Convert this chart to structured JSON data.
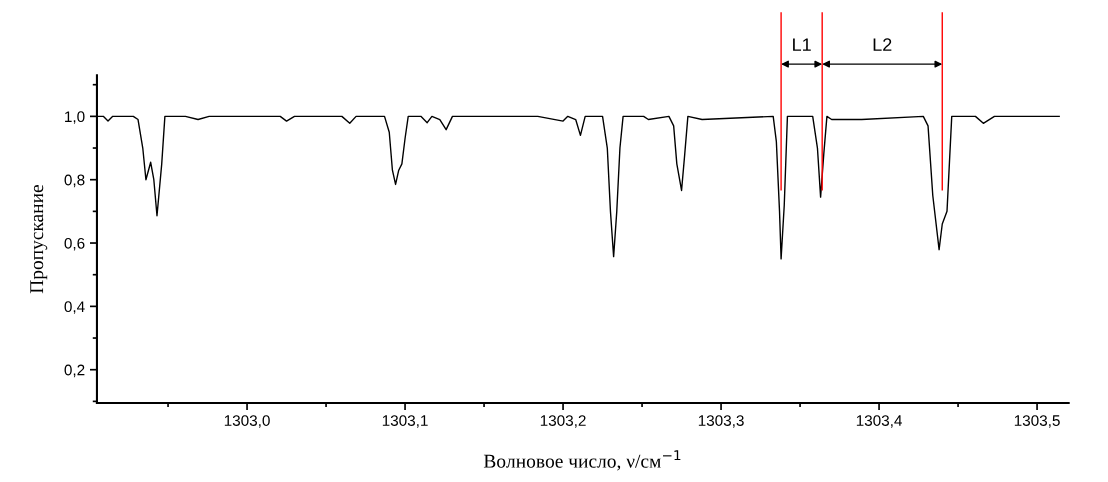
{
  "chart_data": {
    "type": "line",
    "xlabel": "Волновое число, ν/см$^{−1}$",
    "ylabel": "Пропускание",
    "xlim": [
      1302.905,
      1303.52
    ],
    "ylim": [
      0.095,
      1.13
    ],
    "xticks": [
      {
        "value": 1302.95,
        "label": null
      },
      {
        "value": 1303.0,
        "label": "1303,0"
      },
      {
        "value": 1303.05,
        "label": null
      },
      {
        "value": 1303.1,
        "label": "1303,1"
      },
      {
        "value": 1303.15,
        "label": null
      },
      {
        "value": 1303.2,
        "label": "1303,2"
      },
      {
        "value": 1303.25,
        "label": null
      },
      {
        "value": 1303.3,
        "label": "1303,3"
      },
      {
        "value": 1303.35,
        "label": null
      },
      {
        "value": 1303.4,
        "label": "1303,4"
      },
      {
        "value": 1303.45,
        "label": null
      },
      {
        "value": 1303.5,
        "label": "1303,5"
      }
    ],
    "yticks": [
      {
        "value": 0.1,
        "label": null
      },
      {
        "value": 0.2,
        "label": "0,2"
      },
      {
        "value": 0.3,
        "label": null
      },
      {
        "value": 0.4,
        "label": "0,4"
      },
      {
        "value": 0.5,
        "label": null
      },
      {
        "value": 0.6,
        "label": "0,6"
      },
      {
        "value": 0.7,
        "label": null
      },
      {
        "value": 0.8,
        "label": "0,8"
      },
      {
        "value": 0.9,
        "label": null
      },
      {
        "value": 1.0,
        "label": "1,0"
      },
      {
        "value": 1.1,
        "label": null
      }
    ],
    "grid": false,
    "marker": "none",
    "line_style": "solid",
    "series": [
      {
        "color": "#000000",
        "x": [
          1302.905,
          1302.909,
          1302.912,
          1302.915,
          1302.928,
          1302.931,
          1302.934,
          1302.936,
          1302.939,
          1302.941,
          1302.943,
          1302.946,
          1302.948,
          1302.961,
          1302.969,
          1302.976,
          1303.021,
          1303.025,
          1303.03,
          1303.06,
          1303.065,
          1303.069,
          1303.087,
          1303.09,
          1303.092,
          1303.094,
          1303.096,
          1303.098,
          1303.1,
          1303.102,
          1303.11,
          1303.114,
          1303.117,
          1303.122,
          1303.126,
          1303.13,
          1303.184,
          1303.2,
          1303.203,
          1303.208,
          1303.211,
          1303.214,
          1303.225,
          1303.228,
          1303.23,
          1303.232,
          1303.234,
          1303.236,
          1303.238,
          1303.251,
          1303.254,
          1303.267,
          1303.27,
          1303.272,
          1303.275,
          1303.277,
          1303.279,
          1303.288,
          1303.333,
          1303.335,
          1303.337,
          1303.338,
          1303.34,
          1303.342,
          1303.358,
          1303.361,
          1303.363,
          1303.365,
          1303.367,
          1303.37,
          1303.389,
          1303.428,
          1303.431,
          1303.434,
          1303.438,
          1303.44,
          1303.443,
          1303.446,
          1303.461,
          1303.466,
          1303.473,
          1303.514
        ],
        "values": [
          1.0,
          1.0,
          0.985,
          1.0,
          1.0,
          0.99,
          0.9,
          0.8,
          0.855,
          0.8,
          0.686,
          0.85,
          1.0,
          1.0,
          0.99,
          1.0,
          1.0,
          0.985,
          1.0,
          1.0,
          0.978,
          1.0,
          1.0,
          0.95,
          0.83,
          0.785,
          0.83,
          0.85,
          0.93,
          1.0,
          1.0,
          0.98,
          1.0,
          0.99,
          0.958,
          1.0,
          1.0,
          0.985,
          1.0,
          0.99,
          0.94,
          1.0,
          1.0,
          0.9,
          0.7,
          0.557,
          0.7,
          0.9,
          1.0,
          1.0,
          0.99,
          1.0,
          0.97,
          0.85,
          0.766,
          0.88,
          1.0,
          0.99,
          1.0,
          0.92,
          0.7,
          0.55,
          0.72,
          1.0,
          1.0,
          0.9,
          0.745,
          0.88,
          1.0,
          0.99,
          0.99,
          1.0,
          0.97,
          0.75,
          0.579,
          0.66,
          0.7,
          1.0,
          1.0,
          0.978,
          1.0,
          1.0
        ]
      }
    ],
    "ref_lines": [
      {
        "axis": "x",
        "value": 1303.338,
        "color": "#ff0000"
      },
      {
        "axis": "x",
        "value": 1303.364,
        "color": "#ff0000"
      },
      {
        "axis": "x",
        "value": 1303.44,
        "color": "#ff0000"
      }
    ],
    "annotations": [
      "L1",
      "L2"
    ]
  }
}
